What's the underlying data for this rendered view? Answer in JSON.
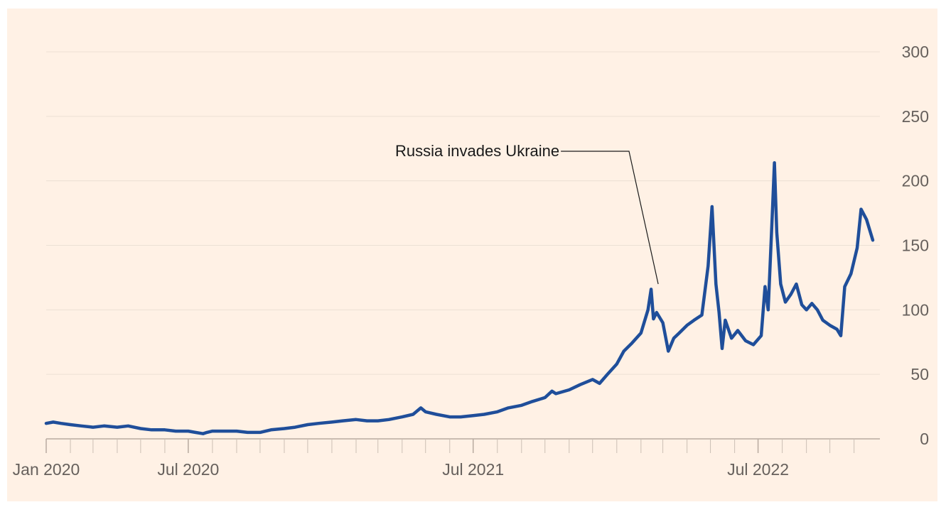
{
  "chart_data": {
    "type": "line",
    "title": "",
    "xlabel": "",
    "ylabel": "",
    "x_tick_labels": [
      {
        "label": "Jan 2020",
        "date": "2020-01-01"
      },
      {
        "label": "Jul 2020",
        "date": "2020-07-01"
      },
      {
        "label": "Jul 2021",
        "date": "2021-07-01"
      },
      {
        "label": "Jul 2022",
        "date": "2022-07-01"
      }
    ],
    "minor_tick_dates": [
      "2020-02-01",
      "2020-03-01",
      "2020-04-01",
      "2020-05-01",
      "2020-06-01",
      "2020-07-01",
      "2020-08-01",
      "2020-09-01",
      "2020-10-01",
      "2020-11-01",
      "2020-12-01",
      "2021-01-01",
      "2021-02-01",
      "2021-03-01",
      "2021-04-01",
      "2021-05-01",
      "2021-06-01",
      "2021-07-01",
      "2021-08-01",
      "2021-09-01",
      "2021-10-01",
      "2021-11-01",
      "2021-12-01",
      "2022-01-01",
      "2022-02-01",
      "2022-03-01",
      "2022-04-01",
      "2022-05-01",
      "2022-06-01",
      "2022-07-01",
      "2022-08-01",
      "2022-09-01",
      "2022-10-01",
      "2022-11-01"
    ],
    "y_ticks": [
      0,
      50,
      100,
      150,
      200,
      250,
      300
    ],
    "xlim": [
      "2020-01-01",
      "2022-11-25"
    ],
    "ylim": [
      0,
      300
    ],
    "y_axis_side": "right",
    "grid": "horizontal",
    "legend": "none",
    "series": [
      {
        "color": "#1f4e9a",
        "points": [
          [
            "2020-01-01",
            12
          ],
          [
            "2020-01-10",
            13
          ],
          [
            "2020-01-20",
            12
          ],
          [
            "2020-02-01",
            11
          ],
          [
            "2020-02-15",
            10
          ],
          [
            "2020-03-01",
            9
          ],
          [
            "2020-03-15",
            10
          ],
          [
            "2020-04-01",
            9
          ],
          [
            "2020-04-15",
            10
          ],
          [
            "2020-05-01",
            8
          ],
          [
            "2020-05-15",
            7
          ],
          [
            "2020-06-01",
            7
          ],
          [
            "2020-06-15",
            6
          ],
          [
            "2020-07-01",
            6
          ],
          [
            "2020-07-10",
            5
          ],
          [
            "2020-07-20",
            4
          ],
          [
            "2020-07-25",
            5
          ],
          [
            "2020-08-01",
            6
          ],
          [
            "2020-08-15",
            6
          ],
          [
            "2020-09-01",
            6
          ],
          [
            "2020-09-15",
            5
          ],
          [
            "2020-10-01",
            5
          ],
          [
            "2020-10-15",
            7
          ],
          [
            "2020-11-01",
            8
          ],
          [
            "2020-11-15",
            9
          ],
          [
            "2020-12-01",
            11
          ],
          [
            "2020-12-15",
            12
          ],
          [
            "2021-01-01",
            13
          ],
          [
            "2021-01-15",
            14
          ],
          [
            "2021-02-01",
            15
          ],
          [
            "2021-02-15",
            14
          ],
          [
            "2021-03-01",
            14
          ],
          [
            "2021-03-15",
            15
          ],
          [
            "2021-04-01",
            17
          ],
          [
            "2021-04-15",
            19
          ],
          [
            "2021-04-25",
            24
          ],
          [
            "2021-05-01",
            21
          ],
          [
            "2021-05-15",
            19
          ],
          [
            "2021-06-01",
            17
          ],
          [
            "2021-06-15",
            17
          ],
          [
            "2021-07-01",
            18
          ],
          [
            "2021-07-15",
            19
          ],
          [
            "2021-08-01",
            21
          ],
          [
            "2021-08-15",
            24
          ],
          [
            "2021-09-01",
            26
          ],
          [
            "2021-09-15",
            29
          ],
          [
            "2021-10-01",
            32
          ],
          [
            "2021-10-10",
            37
          ],
          [
            "2021-10-15",
            35
          ],
          [
            "2021-11-01",
            38
          ],
          [
            "2021-11-15",
            42
          ],
          [
            "2021-12-01",
            46
          ],
          [
            "2021-12-10",
            43
          ],
          [
            "2021-12-20",
            50
          ],
          [
            "2022-01-01",
            58
          ],
          [
            "2022-01-10",
            68
          ],
          [
            "2022-01-20",
            74
          ],
          [
            "2022-02-01",
            82
          ],
          [
            "2022-02-10",
            100
          ],
          [
            "2022-02-14",
            116
          ],
          [
            "2022-02-17",
            93
          ],
          [
            "2022-02-21",
            98
          ],
          [
            "2022-03-01",
            90
          ],
          [
            "2022-03-08",
            68
          ],
          [
            "2022-03-15",
            78
          ],
          [
            "2022-03-22",
            82
          ],
          [
            "2022-04-01",
            88
          ],
          [
            "2022-04-10",
            92
          ],
          [
            "2022-04-20",
            96
          ],
          [
            "2022-04-28",
            134
          ],
          [
            "2022-05-03",
            180
          ],
          [
            "2022-05-08",
            120
          ],
          [
            "2022-05-12",
            98
          ],
          [
            "2022-05-16",
            70
          ],
          [
            "2022-05-20",
            92
          ],
          [
            "2022-05-28",
            78
          ],
          [
            "2022-06-05",
            84
          ],
          [
            "2022-06-15",
            76
          ],
          [
            "2022-06-25",
            73
          ],
          [
            "2022-07-05",
            80
          ],
          [
            "2022-07-10",
            118
          ],
          [
            "2022-07-14",
            100
          ],
          [
            "2022-07-19",
            170
          ],
          [
            "2022-07-22",
            214
          ],
          [
            "2022-07-25",
            160
          ],
          [
            "2022-07-30",
            120
          ],
          [
            "2022-08-05",
            106
          ],
          [
            "2022-08-12",
            112
          ],
          [
            "2022-08-19",
            120
          ],
          [
            "2022-08-26",
            104
          ],
          [
            "2022-09-01",
            100
          ],
          [
            "2022-09-08",
            105
          ],
          [
            "2022-09-15",
            100
          ],
          [
            "2022-09-22",
            92
          ],
          [
            "2022-10-01",
            88
          ],
          [
            "2022-10-10",
            85
          ],
          [
            "2022-10-15",
            80
          ],
          [
            "2022-10-20",
            118
          ],
          [
            "2022-10-28",
            128
          ],
          [
            "2022-11-05",
            148
          ],
          [
            "2022-11-10",
            178
          ],
          [
            "2022-11-17",
            170
          ],
          [
            "2022-11-25",
            154
          ]
        ]
      }
    ],
    "annotations": [
      {
        "text": "Russia invades Ukraine",
        "date": "2022-02-24"
      }
    ]
  }
}
